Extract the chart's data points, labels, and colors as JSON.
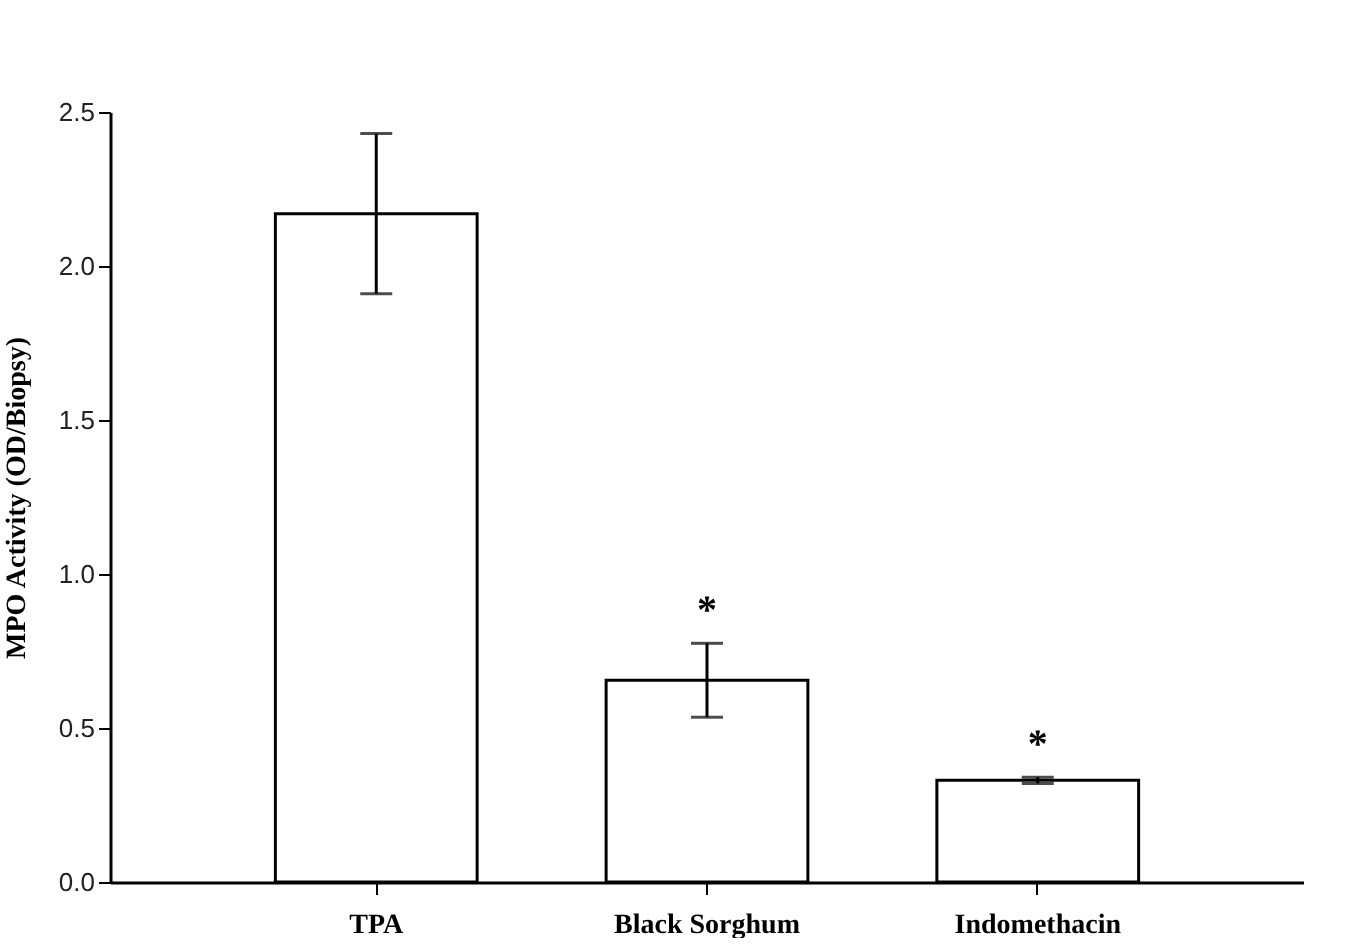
{
  "chart_data": {
    "type": "bar",
    "ylabel": "MPO Activity (OD/Biopsy)",
    "categories": [
      "TPA",
      "Black Sorghum",
      "Indomethacin"
    ],
    "values": [
      2.17,
      0.655,
      0.33
    ],
    "errors": [
      0.26,
      0.12,
      0.01
    ],
    "color": "#ffffff",
    "ylim": [
      0,
      2.5
    ],
    "yticks": [
      {
        "value": 0,
        "label": "0.0"
      },
      {
        "value": 0.5,
        "label": "0.5"
      },
      {
        "value": 1,
        "label": "1.0"
      },
      {
        "value": 1.5,
        "label": "1.5"
      },
      {
        "value": 2,
        "label": "2.0"
      },
      {
        "value": 2.5,
        "label": "2.5"
      }
    ],
    "value_labels": [
      null,
      "*",
      "*"
    ],
    "grid": false
  }
}
